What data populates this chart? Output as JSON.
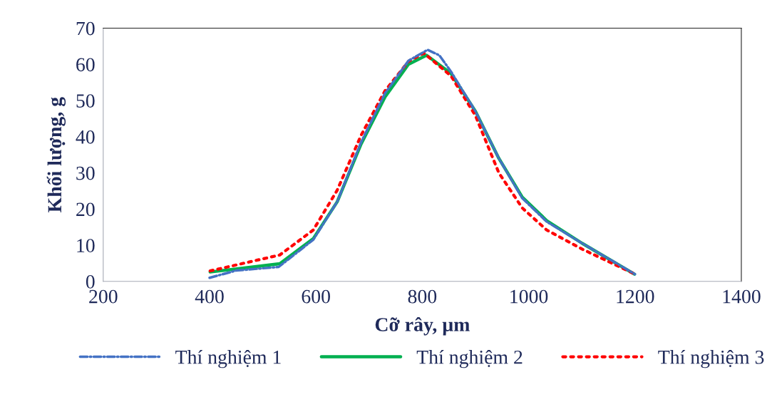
{
  "chart_data": {
    "type": "line",
    "xlabel": "Cỡ rây, µm",
    "ylabel": "Khối lượng, g",
    "xlim": [
      200,
      1400
    ],
    "xticks": [
      200,
      400,
      600,
      800,
      1000,
      1200,
      1400
    ],
    "ylim": [
      0,
      70
    ],
    "yticks": [
      0,
      10,
      20,
      30,
      40,
      50,
      60,
      70
    ],
    "grid": false,
    "legend": "bottom",
    "series": [
      {
        "name": "Thí nghiệm 1",
        "color": "#4472c4",
        "line_style": "dashdot",
        "x": [
          400,
          450,
          530,
          595,
          640,
          685,
          730,
          774,
          810,
          832,
          854,
          900,
          944,
          988,
          1034,
          1101,
          1200
        ],
        "values": [
          1,
          3,
          4,
          11.5,
          22,
          38.5,
          52,
          61,
          64,
          62.5,
          58,
          47,
          34,
          23,
          16.5,
          10.5,
          2
        ]
      },
      {
        "name": "Thí nghiệm 2",
        "color": "#00b050",
        "line_style": "solid",
        "x": [
          401,
          532,
          595,
          640,
          685,
          730,
          774,
          808,
          854,
          900,
          944,
          988,
          1034,
          1101,
          1199
        ],
        "values": [
          2.6,
          4.9,
          11.8,
          22,
          38,
          51,
          60,
          62.5,
          57.5,
          47,
          34,
          23.3,
          16.8,
          10.5,
          2
        ]
      },
      {
        "name": "Thí nghiệm 3",
        "color": "#ff0000",
        "line_style": "dotted",
        "x": [
          401,
          532,
          595,
          640,
          685,
          730,
          774,
          803,
          854,
          900,
          944,
          988,
          1034,
          1101,
          1200
        ],
        "values": [
          2.9,
          7.3,
          14.2,
          25.2,
          40.4,
          52.7,
          60.8,
          63.1,
          56.8,
          45.8,
          30,
          20.3,
          14.2,
          8.9,
          2
        ]
      }
    ]
  }
}
